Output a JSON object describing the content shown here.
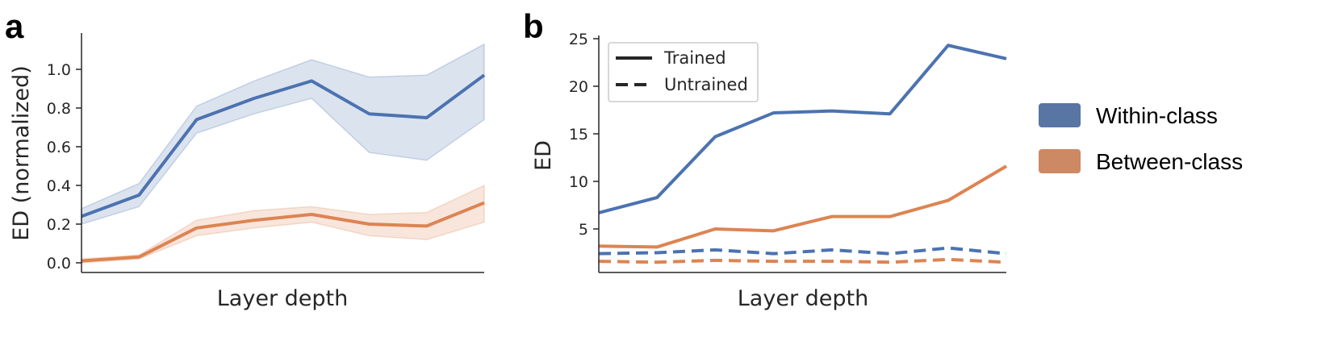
{
  "colors": {
    "within": "#4c72b0",
    "between": "#dd8452",
    "within_legend": "#5875a4",
    "between_legend": "#cc8963"
  },
  "panels": {
    "a": "a",
    "b": "b"
  },
  "class_legend": [
    "Within-class",
    "Between-class"
  ],
  "chart_data": [
    {
      "type": "line",
      "xlabel": "Layer depth",
      "ylabel": "ED (normalized)",
      "x": [
        1,
        2,
        3,
        4,
        5,
        6,
        7,
        8
      ],
      "ylim": [
        -0.05,
        1.25
      ],
      "yticks": [
        0.0,
        0.2,
        0.4,
        0.6,
        0.8,
        1.0
      ],
      "yticklabels": [
        "0.0",
        "0.2",
        "0.4",
        "0.6",
        "0.8",
        "1.0"
      ],
      "series": [
        {
          "name": "Within-class",
          "values": [
            0.24,
            0.35,
            0.74,
            0.85,
            0.94,
            0.77,
            0.75,
            0.97
          ],
          "lower": [
            0.2,
            0.29,
            0.67,
            0.77,
            0.85,
            0.57,
            0.53,
            0.74
          ],
          "upper": [
            0.28,
            0.41,
            0.81,
            0.94,
            1.05,
            0.96,
            0.97,
            1.13
          ]
        },
        {
          "name": "Between-class",
          "values": [
            0.01,
            0.03,
            0.18,
            0.22,
            0.25,
            0.2,
            0.19,
            0.31
          ],
          "lower": [
            0.0,
            0.02,
            0.14,
            0.18,
            0.21,
            0.14,
            0.12,
            0.21
          ],
          "upper": [
            0.02,
            0.04,
            0.22,
            0.27,
            0.29,
            0.25,
            0.26,
            0.4
          ]
        }
      ],
      "grid": false
    },
    {
      "type": "line",
      "xlabel": "Layer depth",
      "ylabel": "ED",
      "x": [
        1,
        2,
        3,
        4,
        5,
        6,
        7,
        8
      ],
      "ylim": [
        1.3,
        26
      ],
      "yticks": [
        5,
        10,
        15,
        20,
        25
      ],
      "yticklabels": [
        "5",
        "10",
        "15",
        "20",
        "25"
      ],
      "series": [
        {
          "name": "Within-class",
          "condition": "Trained",
          "values": [
            6.7,
            8.3,
            14.7,
            17.2,
            17.4,
            17.1,
            24.3,
            22.9
          ]
        },
        {
          "name": "Between-class",
          "condition": "Trained",
          "values": [
            3.2,
            3.1,
            5.0,
            4.8,
            6.3,
            6.3,
            8.0,
            11.6
          ]
        },
        {
          "name": "Within-class",
          "condition": "Untrained",
          "values": [
            2.4,
            2.5,
            2.8,
            2.4,
            2.8,
            2.4,
            3.0,
            2.4
          ]
        },
        {
          "name": "Between-class",
          "condition": "Untrained",
          "values": [
            1.6,
            1.5,
            1.7,
            1.6,
            1.6,
            1.5,
            1.8,
            1.5
          ]
        }
      ],
      "legend": {
        "placement": "top-left",
        "entries": [
          "Trained",
          "Untrained"
        ]
      },
      "grid": false
    }
  ]
}
